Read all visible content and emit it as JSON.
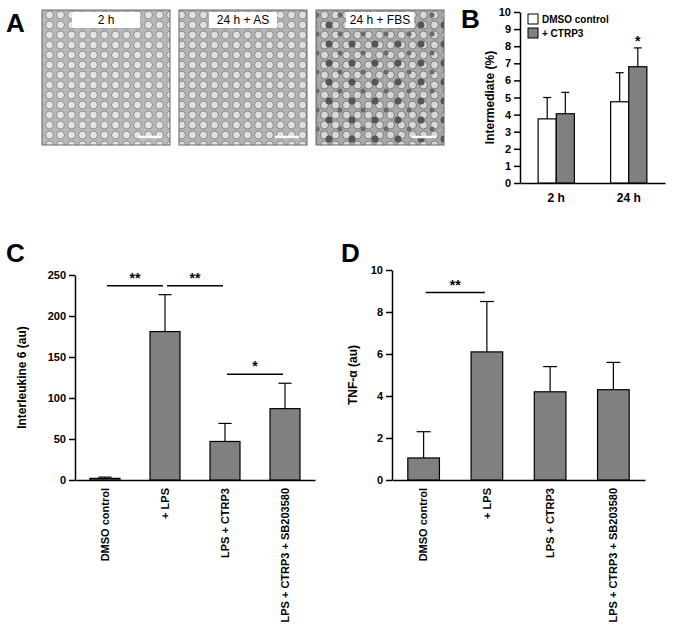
{
  "chart_data": [
    {
      "type": "image",
      "title": "A",
      "categories": [
        "2 h",
        "24 h + AS",
        "24 h + FBS"
      ]
    },
    {
      "type": "bar",
      "title": "B",
      "y_label": "Intermediate (%)",
      "categories": [
        "2 h",
        "24 h"
      ],
      "series": [
        {
          "name": "DMSO control",
          "color": "#ffffff",
          "values": [
            3.75,
            4.75
          ],
          "errors": [
            1.25,
            1.7
          ]
        },
        {
          "name": "+ CTRP3",
          "color": "#808080",
          "values": [
            4.05,
            6.8
          ],
          "errors": [
            1.25,
            1.1
          ]
        }
      ],
      "ylim": [
        0,
        10
      ],
      "yticks": [
        0,
        1,
        2,
        3,
        4,
        5,
        6,
        7,
        8,
        9,
        10
      ],
      "grid": false,
      "legend": "top-left",
      "annotations": [
        {
          "text": "*",
          "category": "24 h",
          "series": "+ CTRP3"
        }
      ]
    },
    {
      "type": "bar",
      "title": "C",
      "y_label": "Interleukine 6 (au)",
      "categories": [
        "DMSO control",
        "+ LPS",
        "LPS + CTRP3",
        "LPS + CTRP3 + SB203580"
      ],
      "values": [
        2,
        181,
        47,
        87
      ],
      "errors": [
        1.5,
        45,
        22,
        31
      ],
      "color": "#808080",
      "ylim": [
        0,
        250
      ],
      "yticks": [
        0,
        50,
        100,
        150,
        200,
        250
      ],
      "grid": false,
      "annotations": [
        {
          "text": "**",
          "between": [
            "DMSO control",
            "+ LPS"
          ]
        },
        {
          "text": "**",
          "between": [
            "+ LPS",
            "LPS + CTRP3"
          ]
        },
        {
          "text": "*",
          "between": [
            "LPS + CTRP3",
            "LPS + CTRP3 + SB203580"
          ]
        }
      ]
    },
    {
      "type": "bar",
      "title": "D",
      "y_label": "TNF-α (au)",
      "categories": [
        "DMSO control",
        "+ LPS",
        "LPS + CTRP3",
        "LPS + CTRP3 + SB203580"
      ],
      "values": [
        1.05,
        6.1,
        4.2,
        4.3
      ],
      "errors": [
        1.25,
        2.4,
        1.2,
        1.3
      ],
      "color": "#808080",
      "ylim": [
        0,
        10
      ],
      "yticks": [
        0,
        2,
        4,
        6,
        8,
        10
      ],
      "grid": false,
      "annotations": [
        {
          "text": "**",
          "between": [
            "DMSO control",
            "+ LPS"
          ]
        }
      ]
    }
  ]
}
